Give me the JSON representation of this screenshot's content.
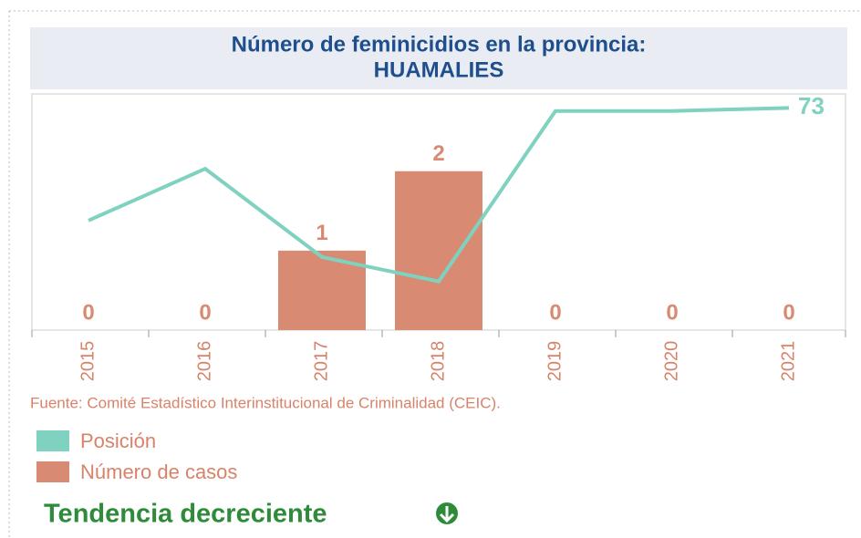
{
  "chart_data": {
    "type": "bar_line",
    "title": [
      "Número de feminicidios en la provincia:",
      "HUAMALIES"
    ],
    "categories": [
      "2015",
      "2016",
      "2017",
      "2018",
      "2019",
      "2020",
      "2021"
    ],
    "series": [
      {
        "name": "Posición",
        "color": "#7fd1c0",
        "axis": "y2",
        "values": [
          36,
          53,
          24,
          16,
          72,
          72,
          73
        ]
      },
      {
        "name": "Número de casos",
        "color": "#d98a72",
        "values": [
          0,
          0,
          1,
          2,
          0,
          0,
          0
        ]
      }
    ],
    "ylim": [
      0,
      2.95
    ],
    "y2lim": [
      0,
      77
    ],
    "source": "Fuente: Comité Estadístico Interinstitucional de Criminalidad (CEIC).",
    "trend": "Tendencia decreciente"
  }
}
